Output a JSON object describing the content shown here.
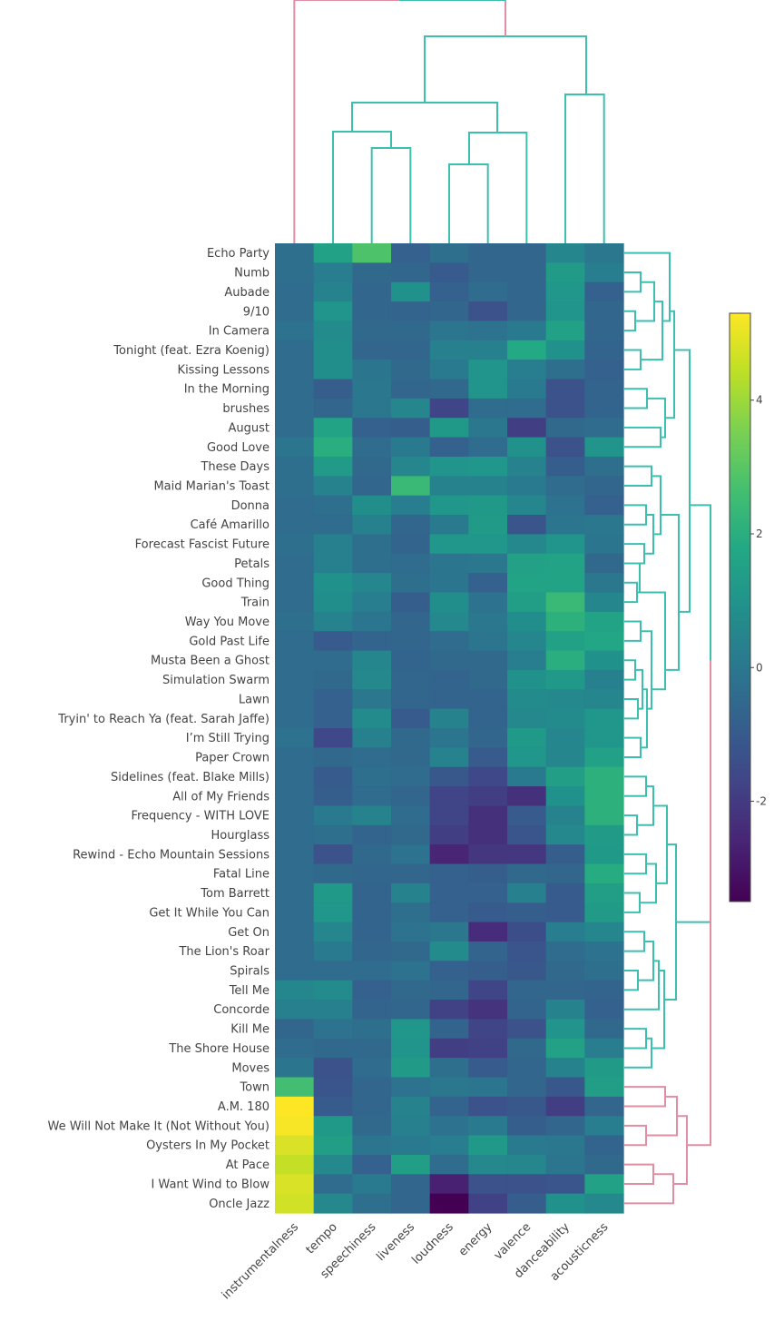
{
  "chart_data": {
    "type": "heatmap",
    "title": "",
    "xlabel": "",
    "ylabel": "",
    "colorscale": "viridis",
    "zlim": [
      -3.5,
      5.3
    ],
    "colorbar": {
      "ticks": [
        -2,
        0,
        2,
        4
      ],
      "tick_labels": [
        "-2",
        "0",
        "2",
        "4"
      ]
    },
    "columns": [
      "instrumentalness",
      "tempo",
      "speechiness",
      "liveness",
      "loudness",
      "energy",
      "valence",
      "danceability",
      "acousticness"
    ],
    "rows": [
      "Echo Party",
      "Numb",
      "Aubade",
      "9/10",
      "In Camera",
      "Tonight (feat. Ezra Koenig)",
      "Kissing Lessons",
      "In the Morning",
      "brushes",
      "August",
      "Good Love",
      "These Days",
      "Maid Marian's Toast",
      "Donna",
      "Café Amarillo",
      "Forecast Fascist Future",
      "Petals",
      "Good Thing",
      "Train",
      "Way You Move",
      "Gold Past Life",
      "Musta Been a Ghost",
      "Simulation Swarm",
      "Lawn",
      "Tryin' to Reach Ya (feat. Sarah Jaffe)",
      "I’m Still Trying",
      "Paper Crown",
      "Sidelines (feat. Blake Mills)",
      "All of My Friends",
      "Frequency - WITH LOVE",
      "Hourglass",
      "Rewind - Echo Mountain Sessions",
      "Fatal Line",
      "Tom Barrett",
      "Get It While You Can",
      "Get On",
      "The Lion's Roar",
      "Spirals",
      "Tell Me",
      "Concorde",
      "Kill Me",
      "The Shore House",
      "Moves",
      "Town",
      "A.M. 180",
      "We Will Not Make It (Not Without You)",
      "Oysters In My Pocket",
      "At Pace",
      "I Want Wind to Blow",
      "Oncle Jazz"
    ],
    "values": [
      [
        -0.3,
        1.5,
        2.8,
        -0.8,
        -0.3,
        -0.6,
        -0.6,
        0.5,
        0.0
      ],
      [
        -0.3,
        0.2,
        -0.5,
        -0.6,
        -1.0,
        -0.6,
        -0.6,
        1.3,
        0.2
      ],
      [
        -0.4,
        0.4,
        -0.6,
        0.9,
        -0.8,
        -0.4,
        -0.6,
        1.1,
        -0.8
      ],
      [
        -0.4,
        1.0,
        -0.6,
        -0.7,
        -0.6,
        -1.3,
        -0.6,
        1.0,
        -0.6
      ],
      [
        -0.2,
        0.7,
        -0.5,
        -0.5,
        -0.1,
        -0.2,
        0.1,
        1.5,
        -0.6
      ],
      [
        -0.4,
        0.8,
        -0.6,
        -0.6,
        0.3,
        0.3,
        1.8,
        0.9,
        -0.7
      ],
      [
        -0.4,
        0.8,
        -0.1,
        -0.5,
        0.1,
        1.0,
        0.2,
        -0.3,
        -0.8
      ],
      [
        -0.4,
        -0.9,
        0.0,
        -0.6,
        -0.5,
        1.0,
        0.1,
        -1.3,
        -0.7
      ],
      [
        -0.4,
        -0.6,
        0.0,
        0.5,
        -1.7,
        -0.4,
        -0.4,
        -1.3,
        -0.7
      ],
      [
        -0.4,
        1.6,
        -0.8,
        -0.9,
        1.2,
        0.0,
        -1.9,
        -0.5,
        -0.4
      ],
      [
        -0.1,
        2.0,
        -0.4,
        0.1,
        -0.8,
        -0.4,
        0.9,
        -1.3,
        1.0
      ],
      [
        -0.3,
        1.3,
        -0.5,
        0.5,
        1.0,
        1.1,
        0.4,
        -0.9,
        -0.3
      ],
      [
        -0.3,
        0.4,
        -0.6,
        2.4,
        0.4,
        0.4,
        0.1,
        -0.4,
        -0.6
      ],
      [
        -0.4,
        -0.3,
        0.8,
        0.2,
        1.1,
        1.2,
        0.5,
        -0.2,
        -0.8
      ],
      [
        -0.4,
        -0.4,
        0.3,
        -0.6,
        0.1,
        1.3,
        -1.2,
        -0.1,
        0.0
      ],
      [
        -0.3,
        0.3,
        -0.3,
        -0.7,
        1.1,
        1.1,
        0.6,
        1.0,
        -0.1
      ],
      [
        -0.4,
        0.3,
        -0.3,
        -0.4,
        -0.1,
        0.0,
        1.5,
        1.6,
        -0.5
      ],
      [
        -0.4,
        0.9,
        0.5,
        -0.3,
        -0.1,
        -0.8,
        1.6,
        1.6,
        0.0
      ],
      [
        -0.4,
        0.8,
        0.2,
        -0.9,
        0.8,
        -0.2,
        1.4,
        2.4,
        0.5
      ],
      [
        -0.3,
        0.4,
        -0.1,
        -0.6,
        0.6,
        0.0,
        0.8,
        2.1,
        1.6
      ],
      [
        -0.4,
        -1.0,
        -0.7,
        -0.6,
        -0.4,
        -0.1,
        0.5,
        1.5,
        1.7
      ],
      [
        -0.4,
        -0.4,
        0.5,
        -0.7,
        -0.5,
        -0.5,
        0.2,
        2.0,
        0.9
      ],
      [
        -0.4,
        -0.5,
        0.6,
        -0.6,
        -0.7,
        -0.5,
        0.9,
        1.2,
        0.3
      ],
      [
        -0.4,
        -0.8,
        0.0,
        -0.6,
        -0.7,
        -0.7,
        0.7,
        0.6,
        0.5
      ],
      [
        -0.4,
        -0.8,
        0.7,
        -1.0,
        0.4,
        -0.7,
        0.6,
        0.7,
        1.1
      ],
      [
        -0.2,
        -1.6,
        0.3,
        -0.5,
        -0.1,
        -0.6,
        1.2,
        0.5,
        1.1
      ],
      [
        -0.4,
        -0.5,
        -0.4,
        -0.5,
        0.4,
        -1.0,
        1.1,
        0.5,
        1.5
      ],
      [
        -0.4,
        -1.0,
        -0.3,
        -0.4,
        -1.1,
        -1.6,
        0.1,
        1.4,
        2.1
      ],
      [
        -0.4,
        -0.9,
        -0.4,
        -0.6,
        -1.7,
        -1.9,
        -2.3,
        0.9,
        2.1
      ],
      [
        -0.4,
        0.1,
        0.4,
        -0.4,
        -1.7,
        -2.3,
        -1.0,
        0.4,
        2.1
      ],
      [
        -0.4,
        -0.3,
        -0.7,
        -0.5,
        -1.9,
        -2.3,
        -1.2,
        0.6,
        1.3
      ],
      [
        -0.4,
        -1.3,
        -0.5,
        -0.2,
        -2.6,
        -2.1,
        -2.1,
        -0.9,
        1.2
      ],
      [
        -0.4,
        -0.5,
        -0.6,
        -0.6,
        -0.8,
        -0.9,
        -0.5,
        -0.6,
        1.9
      ],
      [
        -0.4,
        1.2,
        -0.7,
        0.4,
        -0.8,
        -0.8,
        0.3,
        -1.0,
        1.4
      ],
      [
        -0.4,
        1.1,
        -0.7,
        -0.3,
        -0.8,
        -1.0,
        -0.9,
        -1.0,
        1.3
      ],
      [
        -0.4,
        0.5,
        -0.7,
        -0.2,
        0.0,
        -2.4,
        -1.4,
        0.2,
        0.5
      ],
      [
        -0.4,
        0.1,
        -0.6,
        -0.5,
        0.7,
        -0.7,
        -1.2,
        -0.4,
        -0.2
      ],
      [
        -0.4,
        -0.4,
        -0.4,
        -0.2,
        -0.8,
        -0.9,
        -1.1,
        -0.5,
        -0.3
      ],
      [
        0.5,
        0.7,
        -0.8,
        -0.5,
        -0.6,
        -1.7,
        -0.6,
        -0.6,
        -0.7
      ],
      [
        0.3,
        0.3,
        -0.7,
        -0.6,
        -1.8,
        -2.2,
        -0.7,
        0.4,
        -0.8
      ],
      [
        -0.6,
        -0.2,
        -0.3,
        1.1,
        -0.7,
        -1.7,
        -1.3,
        1.0,
        -0.5
      ],
      [
        -0.4,
        -0.5,
        -0.5,
        1.0,
        -1.9,
        -1.8,
        -0.5,
        1.5,
        0.2
      ],
      [
        -0.1,
        -1.3,
        -0.4,
        1.3,
        -0.3,
        -1.0,
        -0.6,
        0.4,
        1.3
      ],
      [
        2.6,
        -1.2,
        -0.6,
        -0.2,
        0.0,
        -0.1,
        -0.6,
        -1.1,
        1.4
      ],
      [
        5.3,
        -1.0,
        -0.6,
        0.4,
        -0.7,
        -1.3,
        -1.1,
        -1.9,
        -0.6
      ],
      [
        5.2,
        1.2,
        -0.5,
        0.3,
        -0.2,
        0.1,
        -0.9,
        -0.6,
        0.2
      ],
      [
        4.8,
        1.4,
        -0.1,
        0.1,
        0.2,
        1.2,
        0.1,
        0.0,
        -0.7
      ],
      [
        4.5,
        0.6,
        -0.8,
        1.4,
        -0.4,
        0.6,
        0.5,
        -0.1,
        -0.5
      ],
      [
        4.8,
        -0.4,
        0.1,
        -0.6,
        -2.7,
        -1.3,
        -1.3,
        -1.2,
        1.5
      ],
      [
        4.7,
        0.6,
        -0.3,
        -0.6,
        -3.5,
        -1.8,
        -0.9,
        0.9,
        0.6
      ]
    ]
  }
}
